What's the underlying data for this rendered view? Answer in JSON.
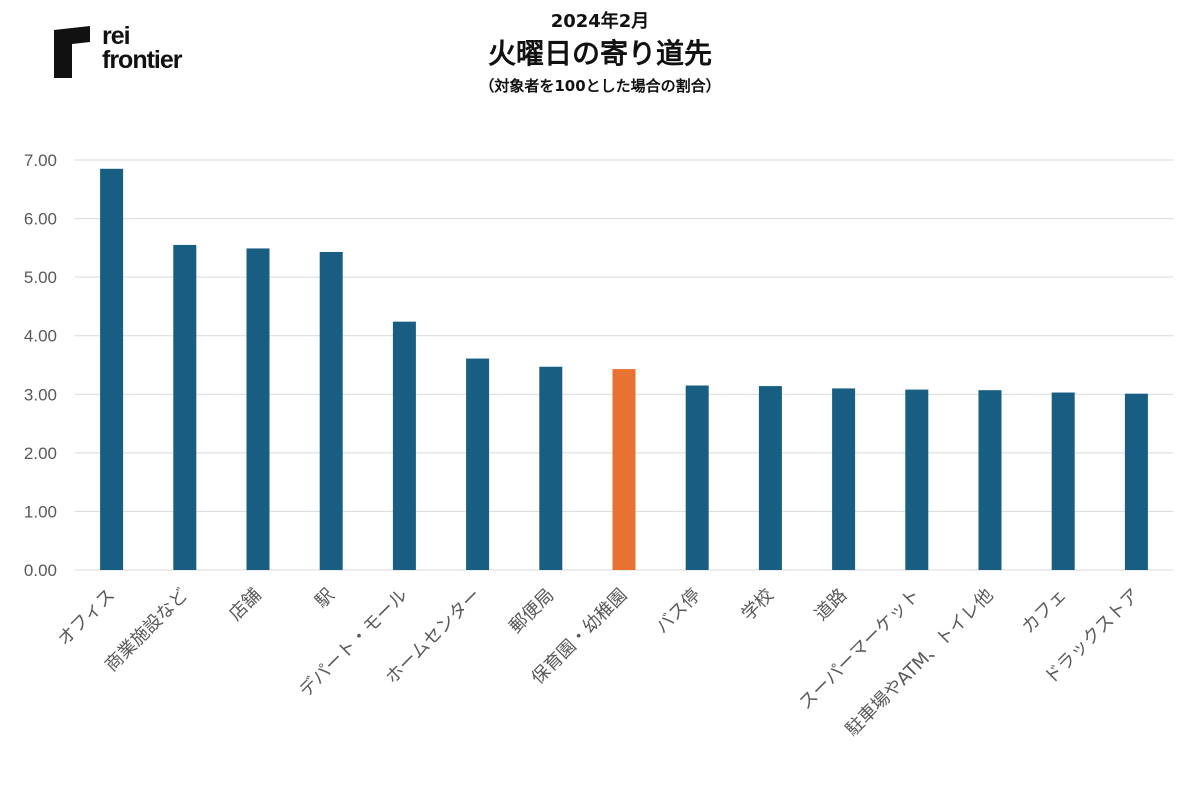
{
  "logo": {
    "line1": "rei",
    "line2": "frontier"
  },
  "header": {
    "date": "2024年2月",
    "title": "火曜日の寄り道先",
    "subtitle": "（対象者を100とした場合の割合）"
  },
  "colors": {
    "bar": "#175e82",
    "highlight": "#e97132",
    "grid": "#d9d9d9",
    "axis_text": "#595959"
  },
  "chart_data": {
    "type": "bar",
    "categories": [
      "オフィス",
      "商業施設など",
      "店舗",
      "駅",
      "デパート・モール",
      "ホームセンター",
      "郵便局",
      "保育園・幼稚園",
      "バス停",
      "学校",
      "道路",
      "スーパーマーケット",
      "駐車場やATM、トイレ他",
      "カフェ",
      "ドラックストア"
    ],
    "values": [
      6.85,
      5.55,
      5.49,
      5.43,
      4.24,
      3.61,
      3.47,
      3.43,
      3.15,
      3.14,
      3.1,
      3.08,
      3.07,
      3.03,
      3.01
    ],
    "highlight_category": "保育園・幼稚園",
    "ylim": [
      0,
      7
    ],
    "yticks": [
      "0.00",
      "1.00",
      "2.00",
      "3.00",
      "4.00",
      "5.00",
      "6.00",
      "7.00"
    ],
    "grid": true,
    "legend": "none"
  }
}
